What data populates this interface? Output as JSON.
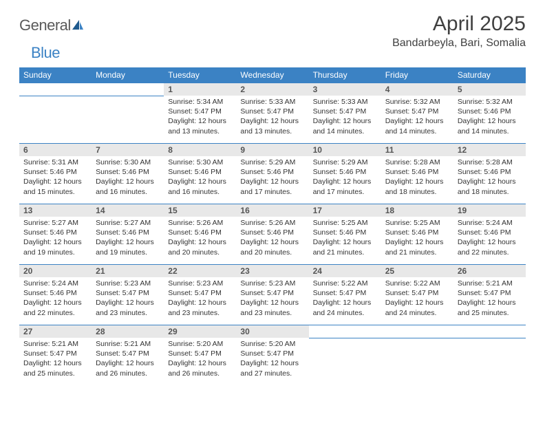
{
  "logo": {
    "text1": "General",
    "text2": "Blue"
  },
  "title": "April 2025",
  "location": "Bandarbeyla, Bari, Somalia",
  "colors": {
    "header_bg": "#3b82c4",
    "header_text": "#ffffff",
    "daynum_bg": "#e8e8e8",
    "daynum_text": "#555555",
    "body_text": "#333333",
    "border": "#3b82c4"
  },
  "weekdays": [
    "Sunday",
    "Monday",
    "Tuesday",
    "Wednesday",
    "Thursday",
    "Friday",
    "Saturday"
  ],
  "weeks": [
    [
      null,
      null,
      {
        "n": "1",
        "sr": "5:34 AM",
        "ss": "5:47 PM",
        "dl": "12 hours and 13 minutes."
      },
      {
        "n": "2",
        "sr": "5:33 AM",
        "ss": "5:47 PM",
        "dl": "12 hours and 13 minutes."
      },
      {
        "n": "3",
        "sr": "5:33 AM",
        "ss": "5:47 PM",
        "dl": "12 hours and 14 minutes."
      },
      {
        "n": "4",
        "sr": "5:32 AM",
        "ss": "5:47 PM",
        "dl": "12 hours and 14 minutes."
      },
      {
        "n": "5",
        "sr": "5:32 AM",
        "ss": "5:46 PM",
        "dl": "12 hours and 14 minutes."
      }
    ],
    [
      {
        "n": "6",
        "sr": "5:31 AM",
        "ss": "5:46 PM",
        "dl": "12 hours and 15 minutes."
      },
      {
        "n": "7",
        "sr": "5:30 AM",
        "ss": "5:46 PM",
        "dl": "12 hours and 16 minutes."
      },
      {
        "n": "8",
        "sr": "5:30 AM",
        "ss": "5:46 PM",
        "dl": "12 hours and 16 minutes."
      },
      {
        "n": "9",
        "sr": "5:29 AM",
        "ss": "5:46 PM",
        "dl": "12 hours and 17 minutes."
      },
      {
        "n": "10",
        "sr": "5:29 AM",
        "ss": "5:46 PM",
        "dl": "12 hours and 17 minutes."
      },
      {
        "n": "11",
        "sr": "5:28 AM",
        "ss": "5:46 PM",
        "dl": "12 hours and 18 minutes."
      },
      {
        "n": "12",
        "sr": "5:28 AM",
        "ss": "5:46 PM",
        "dl": "12 hours and 18 minutes."
      }
    ],
    [
      {
        "n": "13",
        "sr": "5:27 AM",
        "ss": "5:46 PM",
        "dl": "12 hours and 19 minutes."
      },
      {
        "n": "14",
        "sr": "5:27 AM",
        "ss": "5:46 PM",
        "dl": "12 hours and 19 minutes."
      },
      {
        "n": "15",
        "sr": "5:26 AM",
        "ss": "5:46 PM",
        "dl": "12 hours and 20 minutes."
      },
      {
        "n": "16",
        "sr": "5:26 AM",
        "ss": "5:46 PM",
        "dl": "12 hours and 20 minutes."
      },
      {
        "n": "17",
        "sr": "5:25 AM",
        "ss": "5:46 PM",
        "dl": "12 hours and 21 minutes."
      },
      {
        "n": "18",
        "sr": "5:25 AM",
        "ss": "5:46 PM",
        "dl": "12 hours and 21 minutes."
      },
      {
        "n": "19",
        "sr": "5:24 AM",
        "ss": "5:46 PM",
        "dl": "12 hours and 22 minutes."
      }
    ],
    [
      {
        "n": "20",
        "sr": "5:24 AM",
        "ss": "5:46 PM",
        "dl": "12 hours and 22 minutes."
      },
      {
        "n": "21",
        "sr": "5:23 AM",
        "ss": "5:47 PM",
        "dl": "12 hours and 23 minutes."
      },
      {
        "n": "22",
        "sr": "5:23 AM",
        "ss": "5:47 PM",
        "dl": "12 hours and 23 minutes."
      },
      {
        "n": "23",
        "sr": "5:23 AM",
        "ss": "5:47 PM",
        "dl": "12 hours and 23 minutes."
      },
      {
        "n": "24",
        "sr": "5:22 AM",
        "ss": "5:47 PM",
        "dl": "12 hours and 24 minutes."
      },
      {
        "n": "25",
        "sr": "5:22 AM",
        "ss": "5:47 PM",
        "dl": "12 hours and 24 minutes."
      },
      {
        "n": "26",
        "sr": "5:21 AM",
        "ss": "5:47 PM",
        "dl": "12 hours and 25 minutes."
      }
    ],
    [
      {
        "n": "27",
        "sr": "5:21 AM",
        "ss": "5:47 PM",
        "dl": "12 hours and 25 minutes."
      },
      {
        "n": "28",
        "sr": "5:21 AM",
        "ss": "5:47 PM",
        "dl": "12 hours and 26 minutes."
      },
      {
        "n": "29",
        "sr": "5:20 AM",
        "ss": "5:47 PM",
        "dl": "12 hours and 26 minutes."
      },
      {
        "n": "30",
        "sr": "5:20 AM",
        "ss": "5:47 PM",
        "dl": "12 hours and 27 minutes."
      },
      null,
      null,
      null
    ]
  ],
  "labels": {
    "sunrise": "Sunrise:",
    "sunset": "Sunset:",
    "daylight": "Daylight:"
  }
}
